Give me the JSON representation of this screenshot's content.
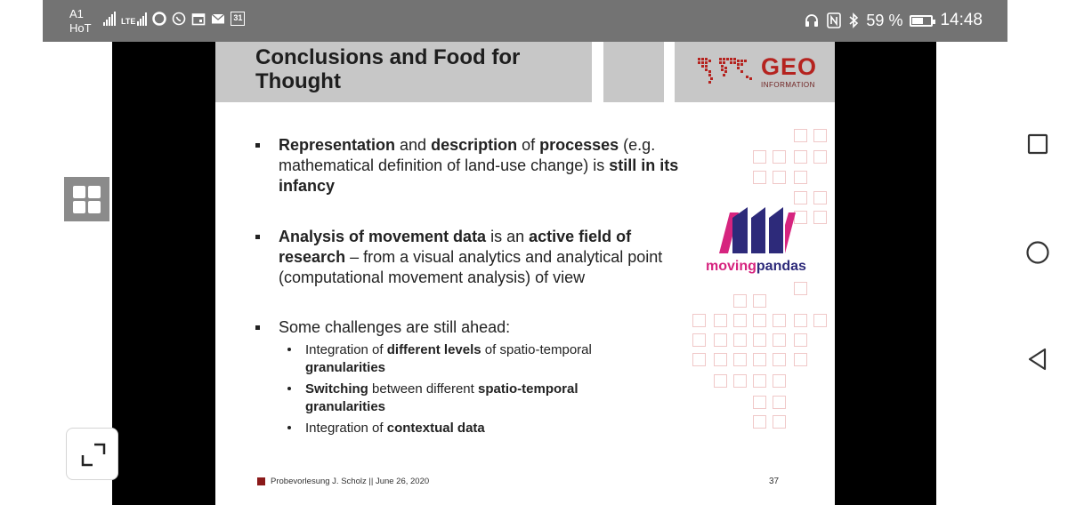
{
  "status_bar": {
    "carrier_line1": "A1",
    "carrier_line2": "HoT",
    "network_label": "LTE",
    "calendar_day": "31",
    "battery_text": "59 %",
    "battery_percent": 59,
    "time": "14:48",
    "icons": [
      "signal-icon",
      "lte-signal-icon",
      "opera-icon",
      "whatsapp-icon",
      "calendar-icon",
      "mail-icon",
      "calendar-31-icon",
      "headset-icon",
      "nfc-icon",
      "bluetooth-icon",
      "battery-icon"
    ]
  },
  "slide": {
    "title_line1": "Conclusions and Food for",
    "title_line2": "Thought",
    "logo_text": "GEO",
    "logo_subtext": "INFORMATION",
    "bullets": [
      {
        "segments": [
          {
            "text": "Representation",
            "bold": true
          },
          {
            "text": " and ",
            "bold": false
          },
          {
            "text": "description",
            "bold": true
          },
          {
            "text": " of ",
            "bold": false
          },
          {
            "text": "processes",
            "bold": true
          },
          {
            "text": " (e.g. mathematical definition of land-use change) is ",
            "bold": false
          },
          {
            "text": "still in its infancy",
            "bold": true
          }
        ]
      },
      {
        "segments": [
          {
            "text": "Analysis of movement data",
            "bold": true
          },
          {
            "text": " is an ",
            "bold": false
          },
          {
            "text": "active field of research",
            "bold": true
          },
          {
            "text": " – from a visual analytics and analytical point (computational movement analysis) of view",
            "bold": false
          }
        ]
      },
      {
        "segments": [
          {
            "text": "Some challenges are still ahead:",
            "bold": false
          }
        ]
      }
    ],
    "sub_bullets": [
      {
        "segments": [
          {
            "text": "Integration of ",
            "bold": false
          },
          {
            "text": "different levels",
            "bold": true
          },
          {
            "text": " of spatio-temporal ",
            "bold": false
          },
          {
            "text": "granularities",
            "bold": true
          }
        ]
      },
      {
        "segments": [
          {
            "text": "Switching",
            "bold": true
          },
          {
            "text": " between different ",
            "bold": false
          },
          {
            "text": "spatio-temporal granularities",
            "bold": true
          }
        ]
      },
      {
        "segments": [
          {
            "text": "Integration of ",
            "bold": false
          },
          {
            "text": "contextual data",
            "bold": true
          }
        ]
      }
    ],
    "movingpandas_part1": "moving",
    "movingpandas_part2": "pandas",
    "footer": "Probevorlesung J. Scholz || June 26, 2020",
    "page_number": "37"
  },
  "nav": {
    "icons": [
      "recent-apps-icon",
      "home-icon",
      "back-icon"
    ]
  },
  "player": {
    "icons": [
      "grid-view-icon",
      "fullscreen-icon"
    ]
  },
  "colors": {
    "status_bar": "#737373",
    "accent_red": "#b5231f",
    "movingpandas_pink": "#d6247f",
    "movingpandas_navy": "#2d2a7a",
    "slide_gray": "#c7c7c7"
  }
}
